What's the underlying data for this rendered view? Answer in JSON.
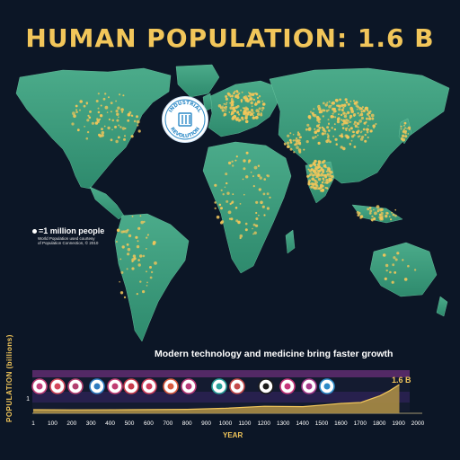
{
  "title": "HUMAN POPULATION: 1.6 B",
  "legend": {
    "unit_label": "=1 million people",
    "source_line_1": "World Population used courtesy",
    "source_line_2": "of Population Connection, © 2010"
  },
  "seal": {
    "text_top": "INDUSTRIAL",
    "text_bottom": "REVOLUTION",
    "icon": "factory-icon"
  },
  "caption": "Modern technology and medicine bring faster growth",
  "timeline": {
    "ylabel": "POPULATION (billions)",
    "xlabel": "YEAR",
    "y_tick": "1",
    "current_value": "1.6 B",
    "ticks": [
      "1",
      "100",
      "200",
      "300",
      "400",
      "500",
      "600",
      "700",
      "800",
      "900",
      "1000",
      "1100",
      "1200",
      "1300",
      "1400",
      "1500",
      "1600",
      "1700",
      "1800",
      "1900",
      "2000"
    ],
    "event_icons": [
      "roman-helmet-icon",
      "pyramid-icon",
      "lightbulb-icon",
      "ship-icon",
      "column-icon",
      "temple-icon",
      "hand-icon",
      "sun-icon",
      "scroll-icon",
      "globe-icon",
      "castle-icon",
      "plague-icon",
      "rose-icon",
      "mask-icon",
      "factory-icon"
    ]
  },
  "chart_data": {
    "type": "area",
    "x": [
      1,
      200,
      500,
      800,
      1000,
      1200,
      1400,
      1500,
      1600,
      1700,
      1800,
      1850,
      1900
    ],
    "values": [
      0.2,
      0.19,
      0.2,
      0.22,
      0.28,
      0.39,
      0.37,
      0.46,
      0.55,
      0.6,
      0.98,
      1.26,
      1.6
    ],
    "xlabel": "YEAR",
    "ylabel": "POPULATION (billions)",
    "xlim": [
      1,
      2000
    ]
  },
  "colors": {
    "ocean": "#0c1626",
    "land": "#3c9a7d",
    "dots": "#f2c65a",
    "title": "#f2c65a"
  }
}
